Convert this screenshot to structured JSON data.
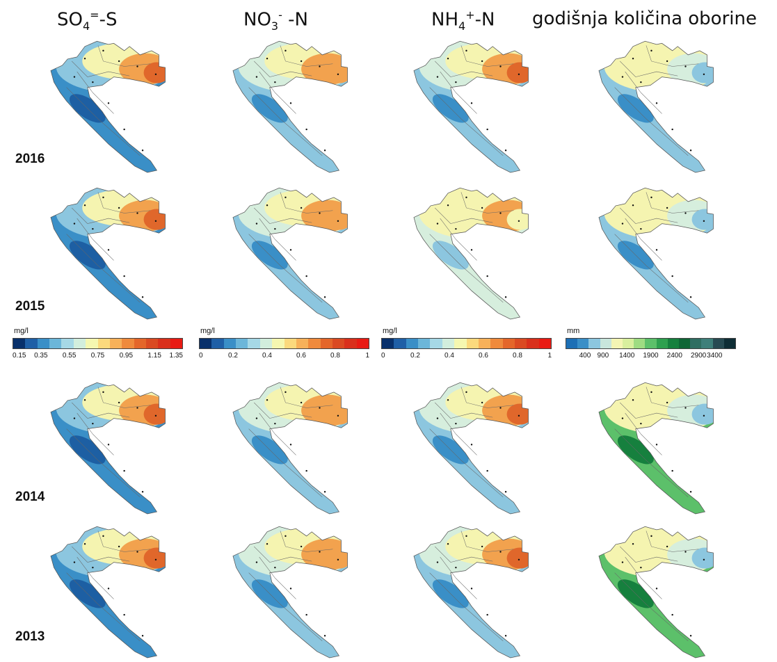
{
  "headers": {
    "so4": {
      "base": "SO",
      "sub": "4",
      "sup": "=",
      "tail": "-S"
    },
    "no3": {
      "base": "NO",
      "sub": "3",
      "sup": "-",
      "tail": " -N"
    },
    "nh4": {
      "base": "NH",
      "sub": "4",
      "sup": "+",
      "tail": "-N"
    },
    "precip": {
      "text": "godišnja količina oborine"
    }
  },
  "years": [
    "2016",
    "2015",
    "2014",
    "2013"
  ],
  "legends": [
    {
      "unit": "mg/l",
      "ticks": [
        "0.15",
        "0.35",
        "0.55",
        "0.75",
        "0.95",
        "1.15",
        "1.35"
      ],
      "colors": [
        "#08306b",
        "#1f5fa6",
        "#3a8fc7",
        "#6cb6d9",
        "#a6d8e6",
        "#d2eedd",
        "#f5f7b0",
        "#fbd97d",
        "#f7b15a",
        "#ef8a3c",
        "#e4662a",
        "#da4a22",
        "#d9301c",
        "#e81b14"
      ]
    },
    {
      "unit": "mg/l",
      "ticks": [
        "0",
        "0.2",
        "0.4",
        "0.6",
        "0.8",
        "1"
      ],
      "colors": [
        "#08306b",
        "#1f5fa6",
        "#3a8fc7",
        "#6cb6d9",
        "#a6d8e6",
        "#d2eedd",
        "#f5f7b0",
        "#fbd97d",
        "#f7b15a",
        "#ef8a3c",
        "#e4662a",
        "#da4a22",
        "#d9301c",
        "#e81b14"
      ]
    },
    {
      "unit": "mg/l",
      "ticks": [
        "0",
        "0.2",
        "0.4",
        "0.6",
        "0.8",
        "1"
      ],
      "colors": [
        "#08306b",
        "#1f5fa6",
        "#3a8fc7",
        "#6cb6d9",
        "#a6d8e6",
        "#d2eedd",
        "#f5f7b0",
        "#fbd97d",
        "#f7b15a",
        "#ef8a3c",
        "#e4662a",
        "#da4a22",
        "#d9301c",
        "#e81b14"
      ]
    },
    {
      "unit": "mm",
      "ticks": [
        "400",
        "900",
        "1400",
        "1900",
        "2400",
        "2900",
        "3400"
      ],
      "colors": [
        "#1d6fb5",
        "#3a8fc7",
        "#8cc6df",
        "#c8e6dc",
        "#f4f5b4",
        "#d8ef9e",
        "#9edc82",
        "#5cc06a",
        "#2ea04f",
        "#16803e",
        "#0f6636",
        "#2f6e62",
        "#3e7f7a",
        "#274a52",
        "#0e2d35"
      ]
    }
  ],
  "palette": {
    "deep_blue": "#1d5fa3",
    "blue": "#3a8fc7",
    "light_blue": "#8cc6df",
    "pale": "#d6eedd",
    "yellow": "#f5f4b0",
    "orange": "#f2a24e",
    "dark_orange": "#e0672b",
    "red": "#e12a1b",
    "green": "#5cc06a",
    "dark_green": "#16803e"
  }
}
